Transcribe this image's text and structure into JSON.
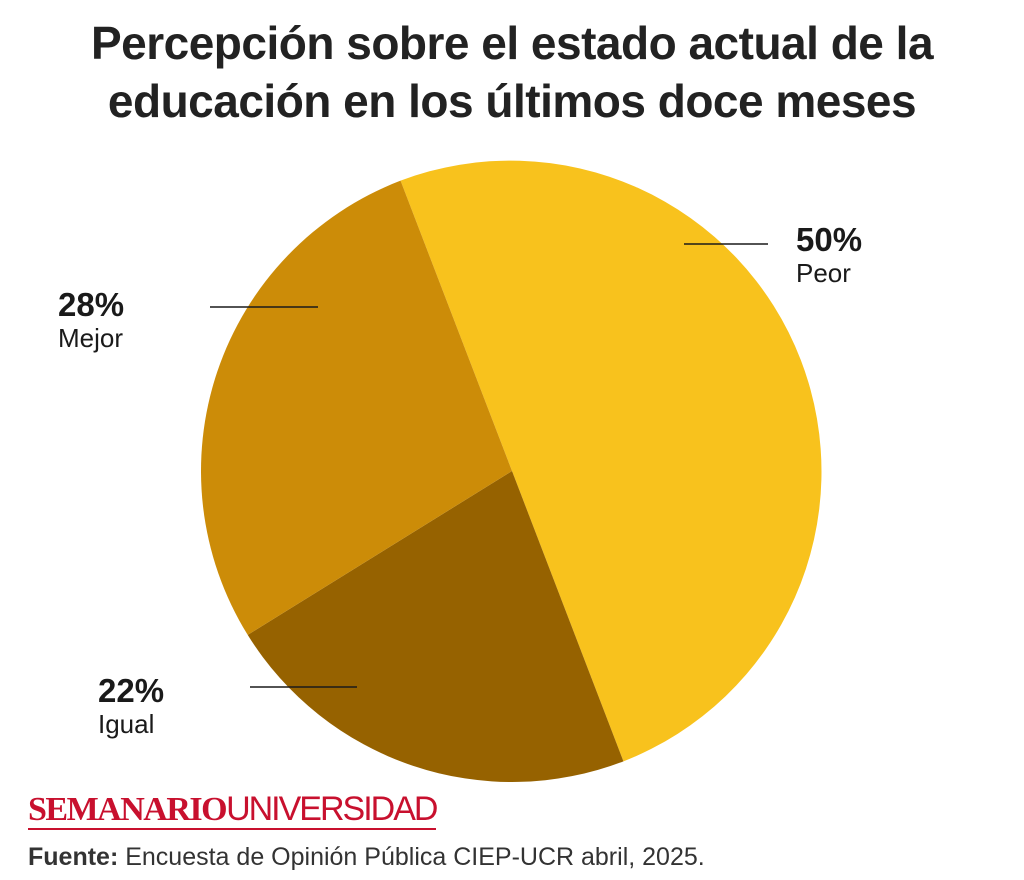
{
  "title": {
    "line1": "Percepción sobre el estado actual de la",
    "line2": "educación en los últimos doce meses"
  },
  "chart_data": {
    "type": "pie",
    "title": "Percepción sobre el estado actual de la educación en los últimos doce meses",
    "slices": [
      {
        "label": "Peor",
        "value": 50,
        "display": "50%",
        "color": "#f8c21d"
      },
      {
        "label": "Igual",
        "value": 22,
        "display": "22%",
        "color": "#966200"
      },
      {
        "label": "Mejor",
        "value": 28,
        "display": "28%",
        "color": "#cc8c08"
      }
    ]
  },
  "brand": {
    "bold": "SEMANARIO",
    "light": "UNIVERSIDAD",
    "color": "#c8102e"
  },
  "source": {
    "label": "Fuente:",
    "text": " Encuesta de Opinión Pública CIEP-UCR abril, 2025."
  }
}
